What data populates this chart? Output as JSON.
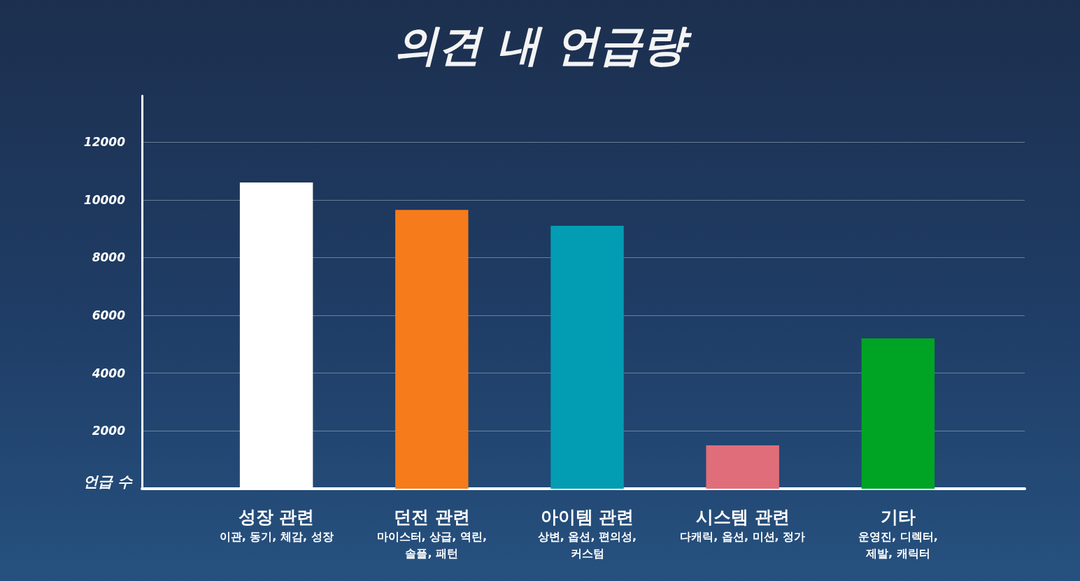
{
  "chart_data": {
    "type": "bar",
    "title": "의견 내 언급량",
    "ylabel": "언급 수",
    "categories": [
      "성장 관련\n이관, 동기, 체감, 성장",
      "던전 관련\n마이스터, 상급, 역린,\n솔플, 패턴",
      "아이템 관련\n상변, 옵션, 편의성,\n커스텀",
      "시스템 관련\n다캐릭, 옵션, 미션, 정가",
      "기타\n운영진, 디렉터,\n제발, 캐릭터"
    ],
    "values": [
      10600,
      9650,
      9100,
      1500,
      5200
    ],
    "colors": [
      "#ffffff",
      "#f67b1b",
      "#039db3",
      "#e06e7a",
      "#00a424"
    ],
    "ylim": [
      0,
      13600
    ],
    "yticks": [
      2000,
      4000,
      6000,
      8000,
      10000,
      12000
    ],
    "grid": "y"
  }
}
